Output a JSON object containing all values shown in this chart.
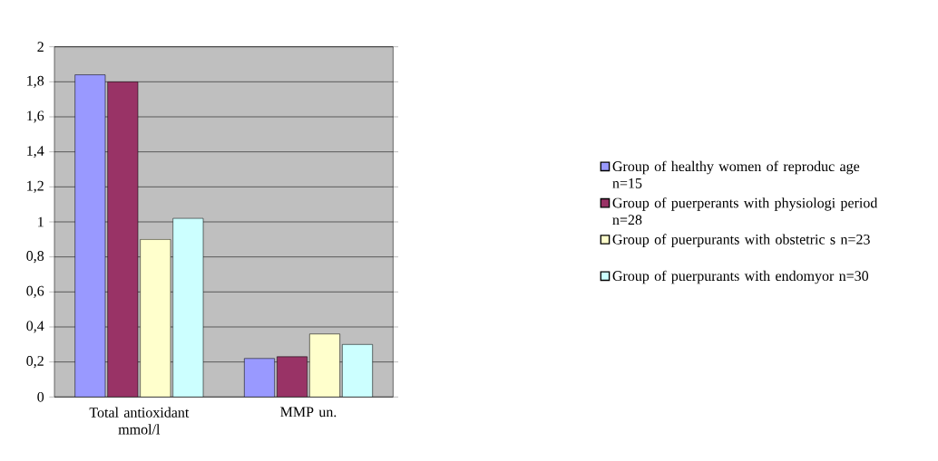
{
  "chart_data": {
    "type": "bar",
    "categories": [
      "Total antioxidant mmol/l",
      "MMP un."
    ],
    "series": [
      {
        "name": "Group of healthy women of reproduc age n=15",
        "color": "#9999ff",
        "values": [
          1.84,
          0.22
        ]
      },
      {
        "name": "Group of puerperants with physiologi period n=28",
        "color": "#993366",
        "values": [
          1.8,
          0.23
        ]
      },
      {
        "name": "Group of puerpurants with obstetric s n=23",
        "color": "#ffffcc",
        "values": [
          0.9,
          0.36
        ]
      },
      {
        "name": "Group of puerpurants with endomyor n=30",
        "color": "#ccffff",
        "values": [
          1.02,
          0.3
        ]
      }
    ],
    "ylim": [
      0,
      2
    ],
    "yticks": [
      0,
      {
        "value": 0.2,
        "label": "0,2"
      },
      {
        "value": 0.4,
        "label": "0,4"
      },
      {
        "value": 0.6,
        "label": "0,6"
      },
      {
        "value": 0.8,
        "label": "0,8"
      },
      1,
      {
        "value": 1.2,
        "label": "1,2"
      },
      {
        "value": 1.4,
        "label": "1,4"
      },
      {
        "value": 1.6,
        "label": "1,6"
      },
      {
        "value": 1.8,
        "label": "1,8"
      },
      2
    ],
    "grid": "y",
    "legend": "right"
  }
}
